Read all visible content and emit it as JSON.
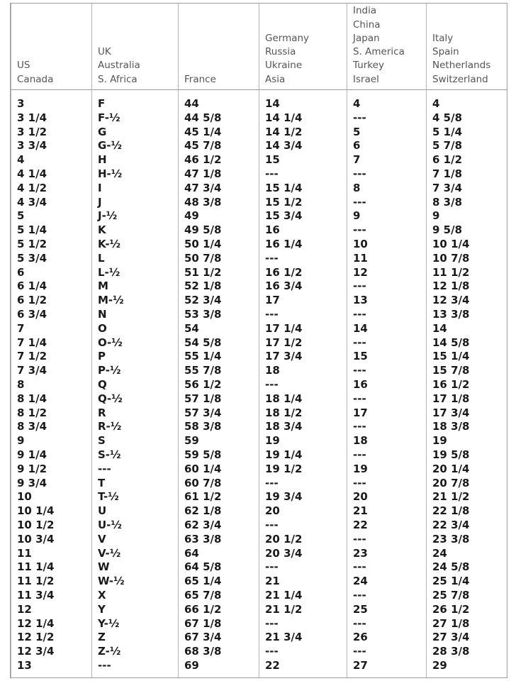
{
  "columns": [
    [
      "US",
      "Canada"
    ],
    [
      "UK",
      "Australia",
      "S. Africa"
    ],
    [
      "France"
    ],
    [
      "Germany",
      "Russia",
      "Ukraine",
      "Asia"
    ],
    [
      "India",
      "China",
      "Japan",
      "S. America",
      "Turkey",
      "Israel"
    ],
    [
      "Italy",
      "Spain",
      "Netherlands",
      "Switzerland"
    ]
  ],
  "rows": [
    [
      "3",
      "F",
      "44",
      "14",
      "4",
      "4"
    ],
    [
      "3 1/4",
      "F-½",
      "44 5/8",
      "14 1/4",
      "---",
      "4 5/8"
    ],
    [
      "3 1/2",
      "G",
      "45 1/4",
      "14 1/2",
      "5",
      "5 1/4"
    ],
    [
      "3 3/4",
      "G-½",
      "45 7/8",
      "14 3/4",
      "6",
      "5 7/8"
    ],
    [
      "4",
      "H",
      "46 1/2",
      "15",
      "7",
      "6 1/2"
    ],
    [
      "4 1/4",
      "H-½",
      "47 1/8",
      "---",
      "---",
      "7 1/8"
    ],
    [
      "4 1/2",
      "I",
      "47 3/4",
      "15 1/4",
      "8",
      "7 3/4"
    ],
    [
      "4 3/4",
      "J",
      "48 3/8",
      "15 1/2",
      "---",
      "8 3/8"
    ],
    [
      "5",
      "J-½",
      "49",
      "15 3/4",
      "9",
      "9"
    ],
    [
      "5 1/4",
      "K",
      "49 5/8",
      "16",
      "---",
      "9 5/8"
    ],
    [
      "5 1/2",
      "K-½",
      "50 1/4",
      "16 1/4",
      "10",
      "10 1/4"
    ],
    [
      "5 3/4",
      "L",
      "50 7/8",
      "---",
      "11",
      "10 7/8"
    ],
    [
      "6",
      "L-½",
      "51 1/2",
      "16 1/2",
      "12",
      "11 1/2"
    ],
    [
      "6 1/4",
      "M",
      "52 1/8",
      "16 3/4",
      "---",
      "12 1/8"
    ],
    [
      "6 1/2",
      "M-½",
      "52 3/4",
      "17",
      "13",
      "12 3/4"
    ],
    [
      "6 3/4",
      "N",
      "53 3/8",
      "---",
      "---",
      "13 3/8"
    ],
    [
      "7",
      "O",
      "54",
      "17 1/4",
      "14",
      "14"
    ],
    [
      "7 1/4",
      "O-½",
      "54 5/8",
      "17 1/2",
      "---",
      "14 5/8"
    ],
    [
      "7 1/2",
      "P",
      "55 1/4",
      "17 3/4",
      "15",
      "15 1/4"
    ],
    [
      "7 3/4",
      "P-½",
      "55 7/8",
      "18",
      "---",
      "15 7/8"
    ],
    [
      "8",
      "Q",
      "56 1/2",
      "---",
      "16",
      "16 1/2"
    ],
    [
      "8 1/4",
      "Q-½",
      "57 1/8",
      "18 1/4",
      "---",
      "17 1/8"
    ],
    [
      "8 1/2",
      "R",
      "57 3/4",
      "18 1/2",
      "17",
      "17 3/4"
    ],
    [
      "8 3/4",
      "R-½",
      "58 3/8",
      "18 3/4",
      "---",
      "18 3/8"
    ],
    [
      "9",
      "S",
      "59",
      "19",
      "18",
      "19"
    ],
    [
      "9 1/4",
      "S-½",
      "59 5/8",
      "19 1/4",
      "---",
      "19 5/8"
    ],
    [
      "9 1/2",
      "---",
      "60 1/4",
      "19 1/2",
      "19",
      "20 1/4"
    ],
    [
      "9 3/4",
      "T",
      "60 7/8",
      "---",
      "---",
      "20 7/8"
    ],
    [
      "10",
      "T-½",
      "61 1/2",
      "19 3/4",
      "20",
      "21 1/2"
    ],
    [
      "10 1/4",
      "U",
      "62 1/8",
      "20",
      "21",
      "22 1/8"
    ],
    [
      "10 1/2",
      "U-½",
      "62 3/4",
      "---",
      "22",
      "22 3/4"
    ],
    [
      "10 3/4",
      "V",
      "63 3/8",
      "20 1/2",
      "---",
      "23 3/8"
    ],
    [
      "11",
      "V-½",
      "64",
      "20 3/4",
      "23",
      "24"
    ],
    [
      "11 1/4",
      "W",
      "64 5/8",
      "---",
      "---",
      "24 5/8"
    ],
    [
      "11 1/2",
      "W-½",
      "65 1/4",
      "21",
      "24",
      "25 1/4"
    ],
    [
      "11 3/4",
      "X",
      "65 7/8",
      "21 1/4",
      "---",
      "25 7/8"
    ],
    [
      "12",
      "Y",
      "66 1/2",
      "21 1/2",
      "25",
      "26 1/2"
    ],
    [
      "12 1/4",
      "Y-½",
      "67 1/8",
      "---",
      "---",
      "27 1/8"
    ],
    [
      "12 1/2",
      "Z",
      "67 3/4",
      "21 3/4",
      "26",
      "27 3/4"
    ],
    [
      "12 3/4",
      "Z-½",
      "68 3/8",
      "---",
      "---",
      "28 3/8"
    ],
    [
      "13",
      "---",
      "69",
      "22",
      "27",
      "29"
    ]
  ]
}
